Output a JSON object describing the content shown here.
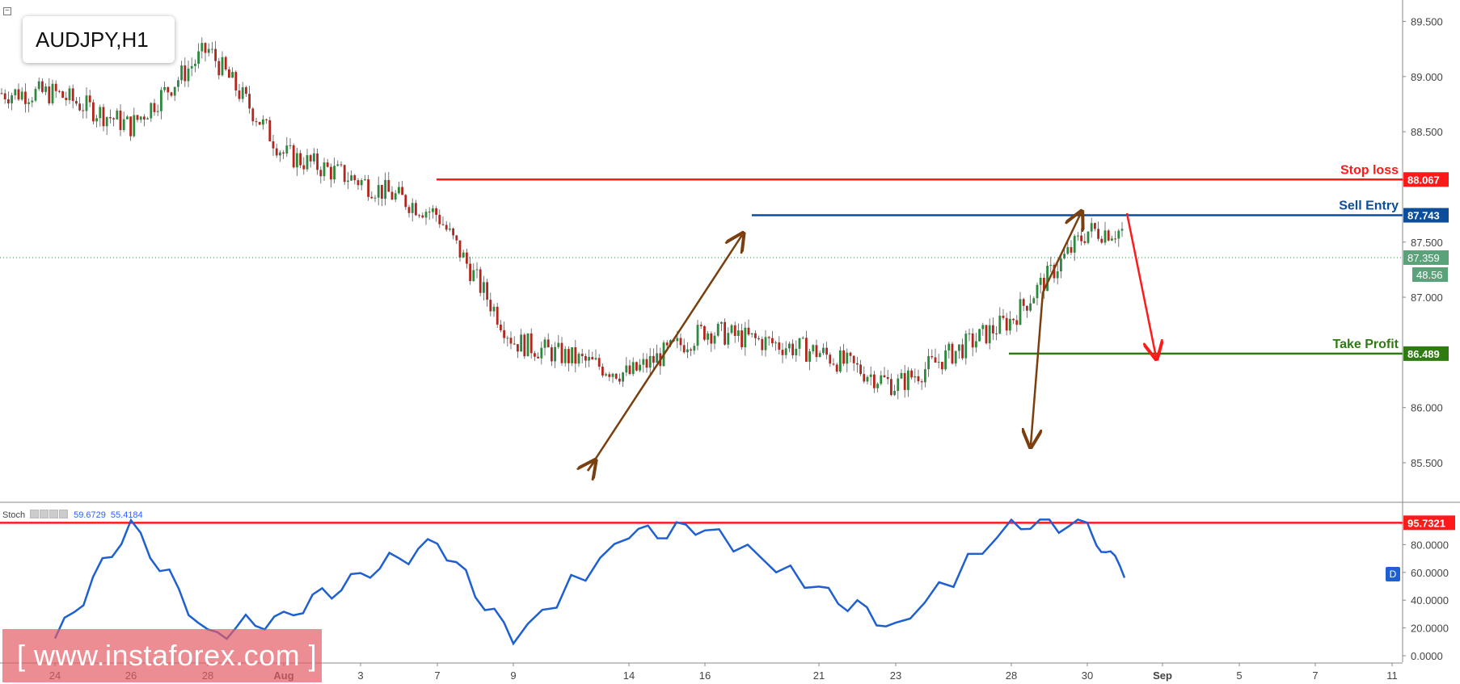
{
  "chart_data": [
    {
      "type": "line",
      "title": "AUDJPY,H1",
      "x_ticks": [
        "24",
        "26",
        "28",
        "Aug",
        "3",
        "7",
        "9",
        "14",
        "16",
        "21",
        "23",
        "28",
        "30",
        "Sep",
        "5",
        "7",
        "11"
      ],
      "y_ticks": [
        "89.500",
        "89.000",
        "88.500",
        "87.500",
        "87.000",
        "86.000",
        "85.500"
      ],
      "ylim": [
        85.2,
        89.65
      ],
      "price_path": [
        {
          "x": "24",
          "y": 88.85
        },
        {
          "x": "26",
          "y": 88.55
        },
        {
          "x": "28",
          "y": 89.25
        },
        {
          "x": "Aug",
          "y": 88.3
        },
        {
          "x": "3",
          "y": 88.05
        },
        {
          "x": "7",
          "y": 87.75
        },
        {
          "x": "9",
          "y": 86.6
        },
        {
          "x": "14",
          "y": 86.3
        },
        {
          "x": "16",
          "y": 86.7
        },
        {
          "x": "21",
          "y": 86.5
        },
        {
          "x": "23",
          "y": 86.2
        },
        {
          "x": "28",
          "y": 86.8
        },
        {
          "x": "30",
          "y": 87.6
        }
      ],
      "levels": [
        {
          "label": "Stop loss",
          "value": "88.067",
          "color": "#ff1a1a"
        },
        {
          "label": "Sell Entry",
          "value": "87.743",
          "color": "#0d4d9a"
        },
        {
          "label": "Take Profit",
          "value": "86.489",
          "color": "#2f7a12"
        }
      ],
      "current_price": "87.359",
      "countdown": "48.56",
      "grid": false
    },
    {
      "type": "line",
      "indicator": "Stoch",
      "legend_values": [
        "59.6729",
        "55.4184"
      ],
      "y_ticks": [
        "80.0000",
        "60.0000",
        "40.0000",
        "20.0000",
        "0.0000"
      ],
      "ylim": [
        0,
        100
      ],
      "level": {
        "value": "95.7321",
        "color": "#ff1a1a"
      },
      "series": [
        {
          "color": "#1e5fd1",
          "values": [
            {
              "x": "24",
              "y": 12
            },
            {
              "x": "26",
              "y": 95
            },
            {
              "x": "28",
              "y": 15
            },
            {
              "x": "Aug",
              "y": 28
            },
            {
              "x": "3",
              "y": 58
            },
            {
              "x": "7",
              "y": 82
            },
            {
              "x": "9",
              "y": 12
            },
            {
              "x": "14",
              "y": 88
            },
            {
              "x": "16",
              "y": 92
            },
            {
              "x": "21",
              "y": 48
            },
            {
              "x": "23",
              "y": 20
            },
            {
              "x": "28",
              "y": 95
            },
            {
              "x": "30",
              "y": 95
            },
            {
              "x": "31",
              "y": 56
            }
          ]
        }
      ]
    }
  ],
  "badges": {
    "d": "D"
  },
  "watermark": "[ www.instaforex.com ]",
  "collapse_icon": "−"
}
